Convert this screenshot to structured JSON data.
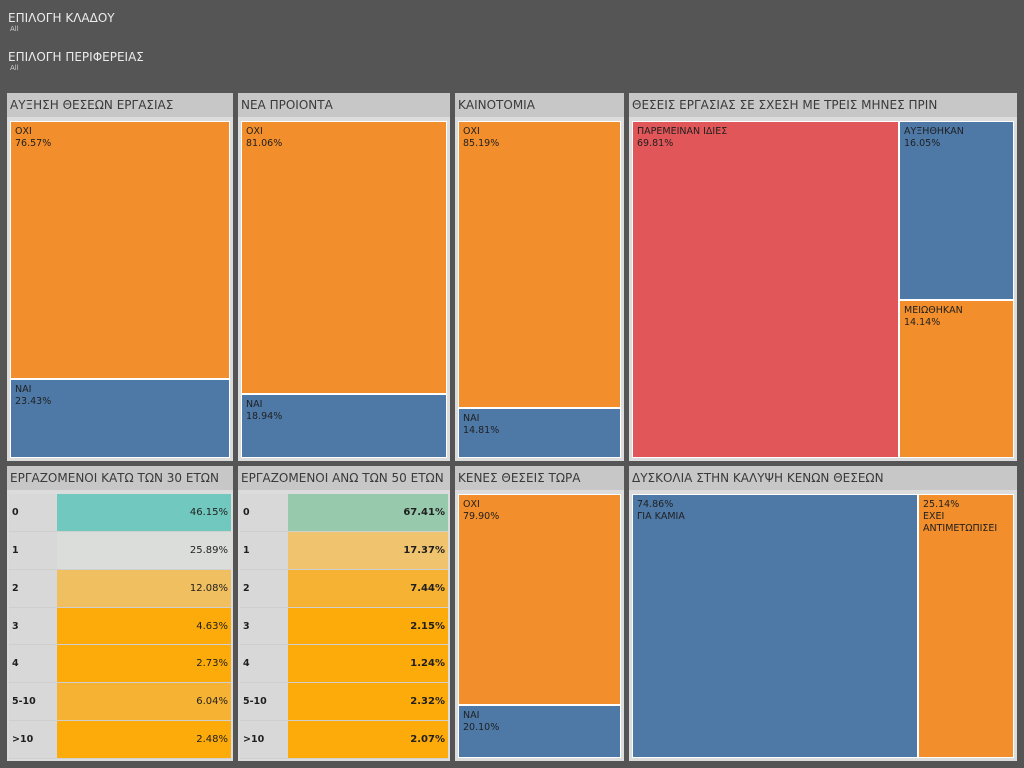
{
  "filters": [
    {
      "title": "ΕΠΙΛΟΓΗ ΚΛΑΔΟΥ",
      "value": "All"
    },
    {
      "title": "ΕΠΙΛΟΓΗ ΠΕΡΙΦΕΡΕΙΑΣ",
      "value": "All"
    }
  ],
  "colors": {
    "orange": "#f28e2b",
    "blue": "#4e79a7",
    "red": "#e15759"
  },
  "chart_data": [
    {
      "type": "treemap",
      "title": "ΑΥΞΗΣΗ ΘΕΣΕΩΝ ΕΡΓΑΣΙΑΣ",
      "items": [
        {
          "label": "ΟΧΙ",
          "value": 76.57,
          "display": "76.57%"
        },
        {
          "label": "ΝΑΙ",
          "value": 23.43,
          "display": "23.43%"
        }
      ]
    },
    {
      "type": "treemap",
      "title": "ΝΕΑ ΠΡΟΙΟΝΤΑ",
      "items": [
        {
          "label": "ΟΧΙ",
          "value": 81.06,
          "display": "81.06%"
        },
        {
          "label": "ΝΑΙ",
          "value": 18.94,
          "display": "18.94%"
        }
      ]
    },
    {
      "type": "treemap",
      "title": "ΚΑΙΝΟΤΟΜΙΑ",
      "items": [
        {
          "label": "ΟΧΙ",
          "value": 85.19,
          "display": "85.19%"
        },
        {
          "label": "ΝΑΙ",
          "value": 14.81,
          "display": "14.81%"
        }
      ]
    },
    {
      "type": "treemap",
      "title": "ΘΕΣΕΙΣ ΕΡΓΑΣΙΑΣ ΣΕ ΣΧΕΣΗ ΜΕ ΤΡΕΙΣ ΜΗΝΕΣ ΠΡΙΝ",
      "items": [
        {
          "label": "ΠΑΡΕΜΕΙΝΑΝ ΙΔΙΕΣ",
          "value": 69.81,
          "display": "69.81%"
        },
        {
          "label": "ΑΥΞΗΘΗΚΑΝ",
          "value": 16.05,
          "display": "16.05%"
        },
        {
          "label": "ΜΕΙΩΘΗΚΑΝ",
          "value": 14.14,
          "display": "14.14%"
        }
      ]
    },
    {
      "type": "heatmap",
      "title": "ΕΡΓΑΖΟΜΕΝΟΙ ΚΑΤΩ ΤΩΝ 30 ΕΤΩΝ",
      "rows": [
        {
          "label": "0",
          "value": 46.15,
          "display": "46.15%"
        },
        {
          "label": "1",
          "value": 25.89,
          "display": "25.89%"
        },
        {
          "label": "2",
          "value": 12.08,
          "display": "12.08%"
        },
        {
          "label": "3",
          "value": 4.63,
          "display": "4.63%"
        },
        {
          "label": "4",
          "value": 2.73,
          "display": "2.73%"
        },
        {
          "label": "5-10",
          "value": 6.04,
          "display": "6.04%"
        },
        {
          "label": ">10",
          "value": 2.48,
          "display": "2.48%"
        }
      ]
    },
    {
      "type": "heatmap",
      "title": "ΕΡΓΑΖΟΜΕΝΟΙ ΑΝΩ ΤΩΝ 50 ΕΤΩΝ",
      "rows": [
        {
          "label": "0",
          "value": 67.41,
          "display": "67.41%"
        },
        {
          "label": "1",
          "value": 17.37,
          "display": "17.37%"
        },
        {
          "label": "2",
          "value": 7.44,
          "display": "7.44%"
        },
        {
          "label": "3",
          "value": 2.15,
          "display": "2.15%"
        },
        {
          "label": "4",
          "value": 1.24,
          "display": "1.24%"
        },
        {
          "label": "5-10",
          "value": 2.32,
          "display": "2.32%"
        },
        {
          "label": ">10",
          "value": 2.07,
          "display": "2.07%"
        }
      ]
    },
    {
      "type": "treemap",
      "title": "ΚΕΝΕΣ ΘΕΣΕΙΣ ΤΩΡΑ",
      "items": [
        {
          "label": "ΟΧΙ",
          "value": 79.9,
          "display": "79.90%"
        },
        {
          "label": "ΝΑΙ",
          "value": 20.1,
          "display": "20.10%"
        }
      ]
    },
    {
      "type": "treemap",
      "title": "ΔΥΣΚΟΛΙΑ ΣΤΗΝ ΚΑΛΥΨΗ ΚΕΝΩΝ ΘΕΣΕΩΝ",
      "items": [
        {
          "label": "ΓΙΑ ΚΑΜΙΑ",
          "value": 74.86,
          "display": "74.86%"
        },
        {
          "label": "ΕΧΕΙ ΑΝΤΙΜΕΤΩΠΙΣΕΙ",
          "value": 25.14,
          "display": "25.14%"
        }
      ]
    }
  ]
}
